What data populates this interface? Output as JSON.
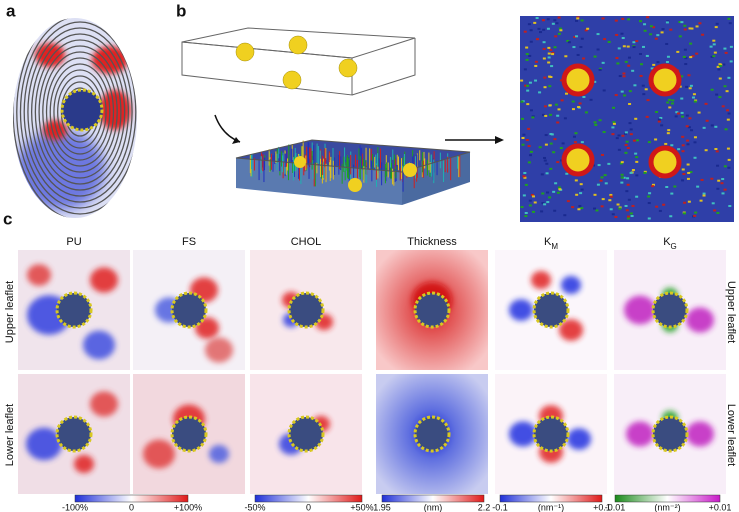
{
  "panel_labels": [
    "a",
    "b",
    "c"
  ],
  "columns": [
    "PU",
    "FS",
    "CHOL",
    "Thickness",
    {
      "base": "K",
      "sub": "M"
    },
    {
      "base": "K",
      "sub": "G"
    }
  ],
  "row_labels_left": [
    "Upper leaflet",
    "Lower leaflet"
  ],
  "row_labels_right": [
    "Upper leaflet",
    "Lower leaflet"
  ],
  "colorbars": [
    {
      "labels": [
        "-100%",
        "0",
        "+100%"
      ]
    },
    {
      "labels": [
        "-50%",
        "0",
        "+50%"
      ]
    },
    {
      "labels": [
        "1.95",
        "(nm)",
        "2.2"
      ]
    },
    {
      "labels": [
        "-0.1",
        "(nm⁻¹)",
        "+0.1"
      ]
    },
    {
      "labels": [
        "-0.01",
        "(nm⁻²)",
        "+0.01"
      ]
    }
  ]
}
